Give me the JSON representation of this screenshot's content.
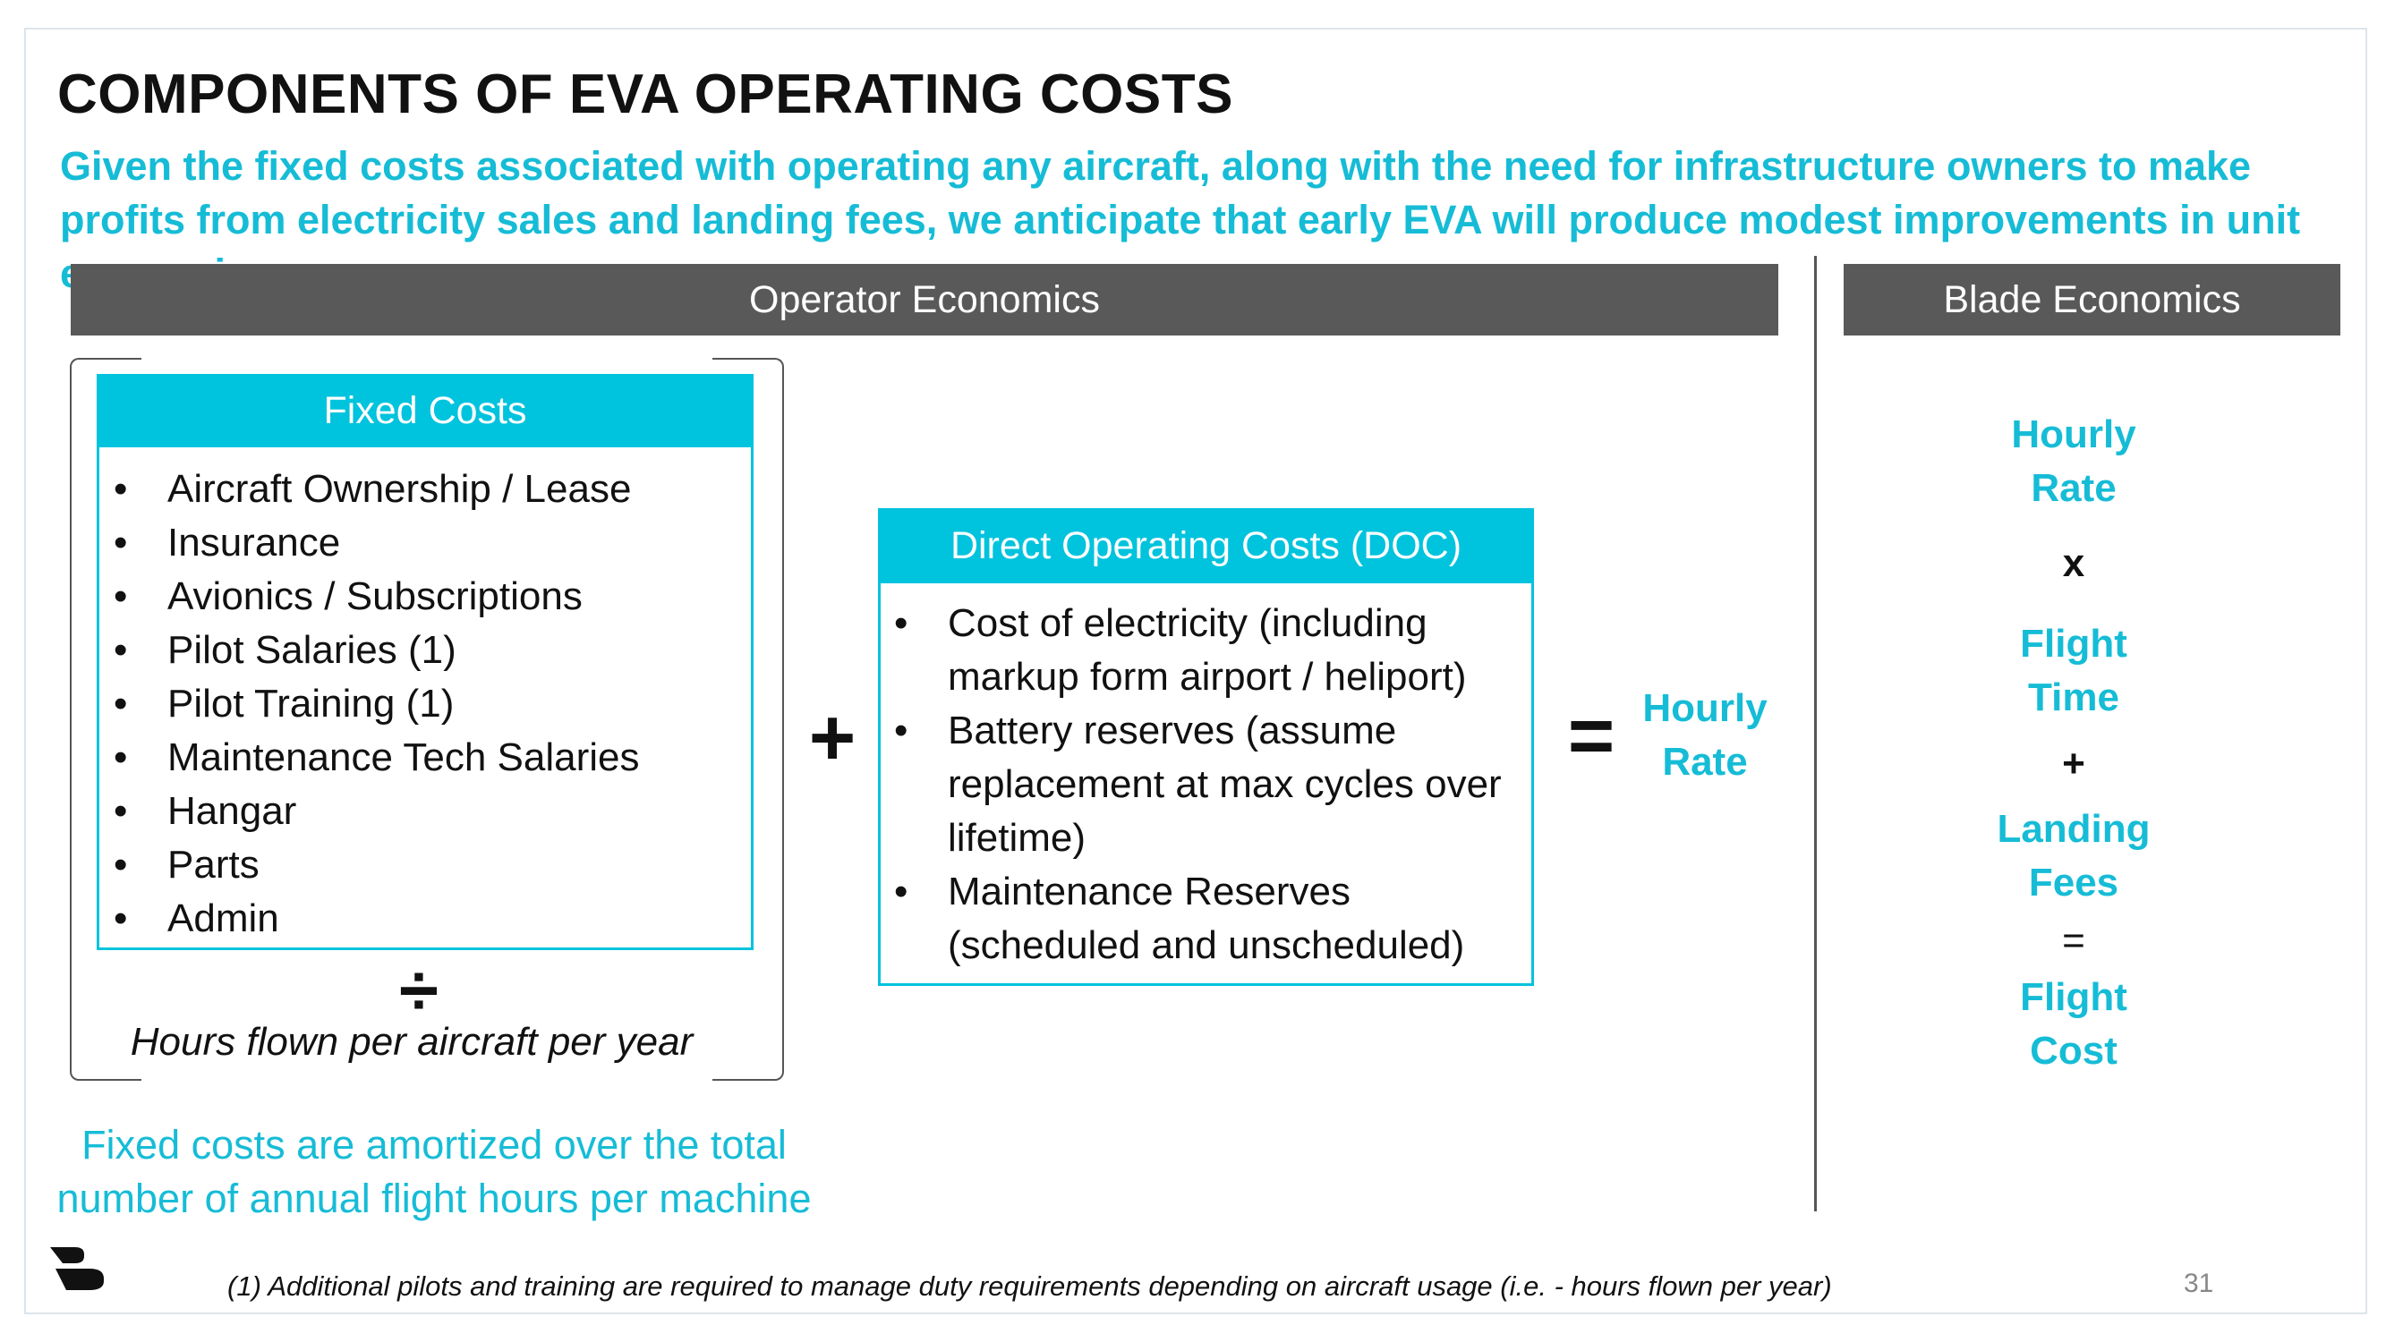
{
  "title": "COMPONENTS OF EVA OPERATING COSTS",
  "subtitle": "Given the fixed costs associated with operating any aircraft, along with the need for infrastructure owners to make profits from electricity sales and landing fees, we anticipate that early EVA will produce modest improvements in unit economics",
  "operator_header": "Operator Economics",
  "blade_header": "Blade Economics",
  "fixed_costs": {
    "title": "Fixed Costs",
    "items": [
      "Aircraft Ownership / Lease",
      "Insurance",
      "Avionics / Subscriptions",
      "Pilot Salaries (1)",
      "Pilot Training (1)",
      "Maintenance Tech Salaries",
      "Hangar",
      "Parts",
      "Admin"
    ],
    "divide_symbol": "÷",
    "divisor": "Hours flown per aircraft per year"
  },
  "plus_symbol": "+",
  "doc": {
    "title": "Direct Operating Costs (DOC)",
    "items": [
      "Cost of electricity (including markup form airport / heliport)",
      "Battery reserves (assume replacement at max cycles over lifetime)",
      "Maintenance Reserves (scheduled and unscheduled)"
    ]
  },
  "equals_symbol": "=",
  "result": {
    "line1": "Hourly",
    "line2": "Rate"
  },
  "fixed_note": "Fixed costs are amortized over the total number of annual flight hours per machine",
  "blade": {
    "hourly_rate": [
      "Hourly",
      "Rate"
    ],
    "times": "x",
    "flight_time": [
      "Flight",
      "Time"
    ],
    "plus": "+",
    "landing_fees": [
      "Landing",
      "Fees"
    ],
    "equals": "=",
    "flight_cost": [
      "Flight",
      "Cost"
    ]
  },
  "footnote": "(1) Additional pilots and training are required to manage duty requirements depending on aircraft usage (i.e. - hours flown per year)",
  "page_number": "31",
  "colors": {
    "accent": "#00c3dd",
    "header_bar": "#595959"
  },
  "logo_icon": "blade-logo-icon"
}
